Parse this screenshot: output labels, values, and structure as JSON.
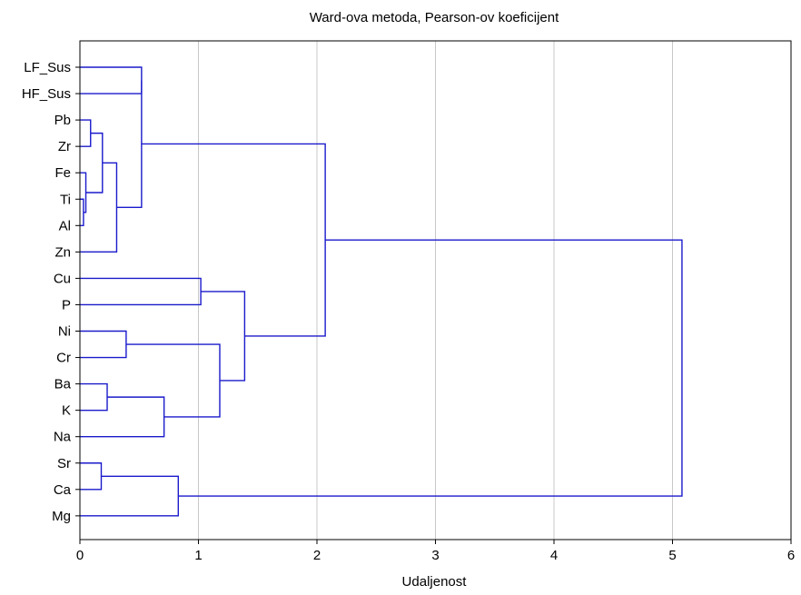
{
  "chart_data": {
    "type": "dendrogram",
    "title": "Ward-ova metoda, Pearson-ov koeficijent",
    "xlabel": "Udaljenost",
    "ylabel": "",
    "xlim": [
      0,
      6
    ],
    "xticks": [
      0,
      1,
      2,
      3,
      4,
      5,
      6
    ],
    "grid": true,
    "orientation": "horizontal",
    "line_color": "#1a1acc",
    "leaves": [
      "LF_Sus",
      "HF_Sus",
      "Pb",
      "Zr",
      "Fe",
      "Ti",
      "Al",
      "Zn",
      "Cu",
      "P",
      "Ni",
      "Cr",
      "Ba",
      "K",
      "Na",
      "Sr",
      "Ca",
      "Mg"
    ],
    "merges": [
      {
        "a": "Ti",
        "b": "Al",
        "height": 0.03
      },
      {
        "a": "Fe",
        "b": "Ti+Al",
        "height": 0.05
      },
      {
        "a": "Pb",
        "b": "Zr",
        "height": 0.09
      },
      {
        "a": "Pb+Zr",
        "b": "Fe+Ti+Al",
        "height": 0.19
      },
      {
        "a": "Pb+Zr+Fe+Ti+Al",
        "b": "Zn",
        "height": 0.31
      },
      {
        "a": "LF_Sus",
        "b": "HF_Sus",
        "height": 0.52
      },
      {
        "a": "LF_Sus+HF_Sus",
        "b": "Pb+Zr+Fe+Ti+Al+Zn",
        "height": 0.52
      },
      {
        "a": "Cu",
        "b": "P",
        "height": 1.02
      },
      {
        "a": "Ni",
        "b": "Cr",
        "height": 0.39
      },
      {
        "a": "Ba",
        "b": "K",
        "height": 0.23
      },
      {
        "a": "Ba+K",
        "b": "Na",
        "height": 0.71
      },
      {
        "a": "Ni+Cr",
        "b": "Ba+K+Na",
        "height": 1.18
      },
      {
        "a": "Cu+P",
        "b": "Ni+Cr+Ba+K+Na",
        "height": 1.39
      },
      {
        "a": "Group1",
        "b": "Group2",
        "height": 2.07
      },
      {
        "a": "Sr",
        "b": "Ca",
        "height": 0.18
      },
      {
        "a": "Sr+Ca",
        "b": "Mg",
        "height": 0.83
      },
      {
        "a": "Group1+Group2",
        "b": "Sr+Ca+Mg",
        "height": 5.08
      }
    ]
  }
}
